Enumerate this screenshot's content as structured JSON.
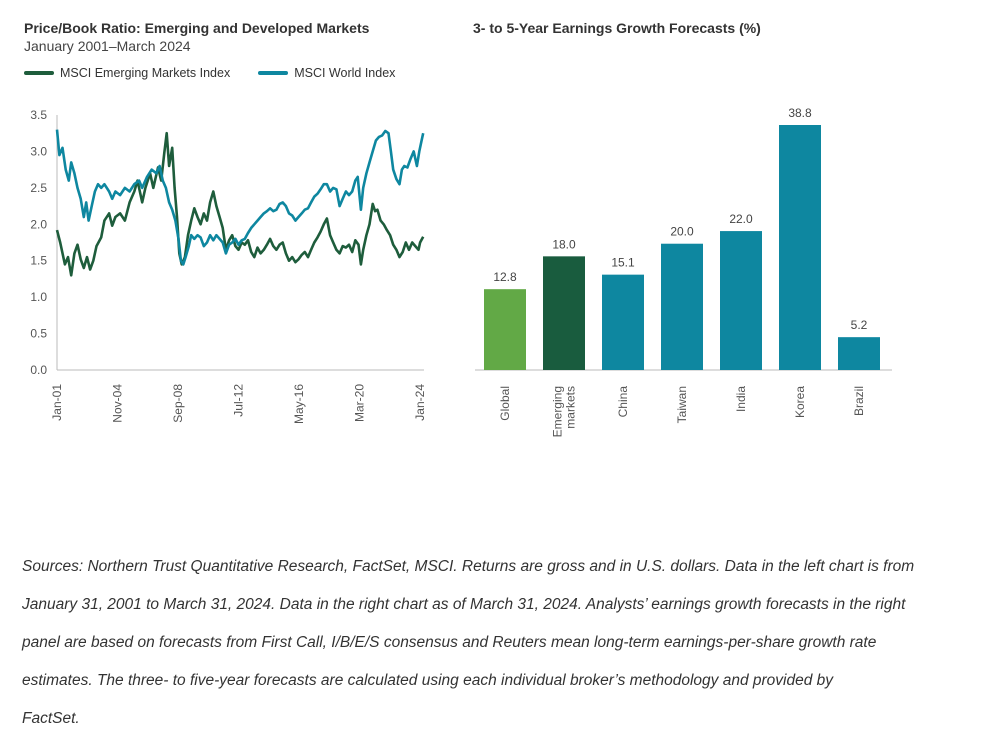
{
  "chart_data": [
    {
      "type": "line",
      "title": "Price/Book Ratio: Emerging and Developed Markets",
      "subtitle": "January 2001–March 2024",
      "ylim": [
        0,
        3.5
      ],
      "yticks": [
        "0.0",
        "0.5",
        "1.0",
        "1.5",
        "2.0",
        "2.5",
        "3.0",
        "3.5"
      ],
      "xlim": [
        2001.0,
        2024.25
      ],
      "xticks": [
        {
          "label": "Jan-01",
          "x": 2001.0
        },
        {
          "label": "Nov-04",
          "x": 2004.83
        },
        {
          "label": "Sep-08",
          "x": 2008.67
        },
        {
          "label": "Jul-12",
          "x": 2012.5
        },
        {
          "label": "May-16",
          "x": 2016.33
        },
        {
          "label": "Mar-20",
          "x": 2020.17
        },
        {
          "label": "Jan-24",
          "x": 2024.0
        }
      ],
      "series": [
        {
          "name": "MSCI Emerging Markets Index",
          "color": "#1e5d3c",
          "points": [
            [
              2001.0,
              1.92
            ],
            [
              2001.2,
              1.75
            ],
            [
              2001.5,
              1.45
            ],
            [
              2001.7,
              1.55
            ],
            [
              2001.9,
              1.3
            ],
            [
              2002.1,
              1.6
            ],
            [
              2002.3,
              1.72
            ],
            [
              2002.5,
              1.52
            ],
            [
              2002.7,
              1.4
            ],
            [
              2002.9,
              1.55
            ],
            [
              2003.1,
              1.38
            ],
            [
              2003.3,
              1.5
            ],
            [
              2003.5,
              1.7
            ],
            [
              2003.8,
              1.82
            ],
            [
              2004.0,
              2.05
            ],
            [
              2004.3,
              2.15
            ],
            [
              2004.5,
              1.98
            ],
            [
              2004.7,
              2.1
            ],
            [
              2005.0,
              2.15
            ],
            [
              2005.3,
              2.05
            ],
            [
              2005.6,
              2.3
            ],
            [
              2005.9,
              2.45
            ],
            [
              2006.1,
              2.6
            ],
            [
              2006.4,
              2.3
            ],
            [
              2006.6,
              2.5
            ],
            [
              2006.9,
              2.7
            ],
            [
              2007.1,
              2.5
            ],
            [
              2007.4,
              2.78
            ],
            [
              2007.6,
              2.6
            ],
            [
              2007.8,
              2.98
            ],
            [
              2007.95,
              3.25
            ],
            [
              2008.1,
              2.8
            ],
            [
              2008.3,
              3.05
            ],
            [
              2008.45,
              2.5
            ],
            [
              2008.6,
              2.1
            ],
            [
              2008.75,
              1.6
            ],
            [
              2008.9,
              1.45
            ],
            [
              2009.1,
              1.55
            ],
            [
              2009.3,
              1.85
            ],
            [
              2009.5,
              2.05
            ],
            [
              2009.7,
              2.22
            ],
            [
              2009.9,
              2.1
            ],
            [
              2010.1,
              2.0
            ],
            [
              2010.3,
              2.15
            ],
            [
              2010.5,
              2.05
            ],
            [
              2010.7,
              2.3
            ],
            [
              2010.9,
              2.45
            ],
            [
              2011.1,
              2.25
            ],
            [
              2011.3,
              2.1
            ],
            [
              2011.5,
              1.95
            ],
            [
              2011.7,
              1.65
            ],
            [
              2011.9,
              1.78
            ],
            [
              2012.1,
              1.85
            ],
            [
              2012.3,
              1.7
            ],
            [
              2012.5,
              1.65
            ],
            [
              2012.7,
              1.75
            ],
            [
              2012.9,
              1.72
            ],
            [
              2013.1,
              1.78
            ],
            [
              2013.3,
              1.62
            ],
            [
              2013.5,
              1.55
            ],
            [
              2013.7,
              1.68
            ],
            [
              2013.9,
              1.6
            ],
            [
              2014.1,
              1.65
            ],
            [
              2014.3,
              1.72
            ],
            [
              2014.5,
              1.8
            ],
            [
              2014.7,
              1.7
            ],
            [
              2014.9,
              1.65
            ],
            [
              2015.1,
              1.72
            ],
            [
              2015.3,
              1.75
            ],
            [
              2015.5,
              1.6
            ],
            [
              2015.7,
              1.5
            ],
            [
              2015.9,
              1.55
            ],
            [
              2016.1,
              1.48
            ],
            [
              2016.3,
              1.52
            ],
            [
              2016.5,
              1.58
            ],
            [
              2016.7,
              1.62
            ],
            [
              2016.9,
              1.55
            ],
            [
              2017.1,
              1.65
            ],
            [
              2017.3,
              1.75
            ],
            [
              2017.5,
              1.82
            ],
            [
              2017.7,
              1.9
            ],
            [
              2017.9,
              2.0
            ],
            [
              2018.1,
              2.08
            ],
            [
              2018.3,
              1.85
            ],
            [
              2018.5,
              1.75
            ],
            [
              2018.7,
              1.65
            ],
            [
              2018.9,
              1.6
            ],
            [
              2019.1,
              1.7
            ],
            [
              2019.3,
              1.68
            ],
            [
              2019.5,
              1.72
            ],
            [
              2019.7,
              1.62
            ],
            [
              2019.9,
              1.78
            ],
            [
              2020.1,
              1.72
            ],
            [
              2020.25,
              1.45
            ],
            [
              2020.4,
              1.65
            ],
            [
              2020.6,
              1.85
            ],
            [
              2020.8,
              2.0
            ],
            [
              2021.0,
              2.28
            ],
            [
              2021.15,
              2.18
            ],
            [
              2021.3,
              2.2
            ],
            [
              2021.5,
              2.05
            ],
            [
              2021.7,
              2.0
            ],
            [
              2021.9,
              1.92
            ],
            [
              2022.1,
              1.85
            ],
            [
              2022.3,
              1.72
            ],
            [
              2022.5,
              1.65
            ],
            [
              2022.7,
              1.55
            ],
            [
              2022.9,
              1.62
            ],
            [
              2023.1,
              1.75
            ],
            [
              2023.3,
              1.65
            ],
            [
              2023.5,
              1.75
            ],
            [
              2023.7,
              1.7
            ],
            [
              2023.9,
              1.65
            ],
            [
              2024.0,
              1.75
            ],
            [
              2024.2,
              1.83
            ]
          ]
        },
        {
          "name": "MSCI World Index",
          "color": "#0e87a0",
          "points": [
            [
              2001.0,
              3.3
            ],
            [
              2001.15,
              2.95
            ],
            [
              2001.35,
              3.05
            ],
            [
              2001.55,
              2.75
            ],
            [
              2001.75,
              2.6
            ],
            [
              2001.9,
              2.85
            ],
            [
              2002.1,
              2.7
            ],
            [
              2002.3,
              2.5
            ],
            [
              2002.5,
              2.35
            ],
            [
              2002.7,
              2.1
            ],
            [
              2002.85,
              2.3
            ],
            [
              2003.0,
              2.05
            ],
            [
              2003.2,
              2.25
            ],
            [
              2003.4,
              2.45
            ],
            [
              2003.6,
              2.55
            ],
            [
              2003.8,
              2.5
            ],
            [
              2004.0,
              2.55
            ],
            [
              2004.3,
              2.45
            ],
            [
              2004.5,
              2.35
            ],
            [
              2004.7,
              2.45
            ],
            [
              2005.0,
              2.4
            ],
            [
              2005.3,
              2.5
            ],
            [
              2005.6,
              2.45
            ],
            [
              2005.9,
              2.55
            ],
            [
              2006.2,
              2.6
            ],
            [
              2006.4,
              2.5
            ],
            [
              2006.7,
              2.65
            ],
            [
              2007.0,
              2.75
            ],
            [
              2007.3,
              2.7
            ],
            [
              2007.5,
              2.8
            ],
            [
              2007.7,
              2.6
            ],
            [
              2007.9,
              2.5
            ],
            [
              2008.1,
              2.3
            ],
            [
              2008.3,
              2.2
            ],
            [
              2008.5,
              2.05
            ],
            [
              2008.7,
              1.8
            ],
            [
              2008.85,
              1.5
            ],
            [
              2009.0,
              1.45
            ],
            [
              2009.15,
              1.55
            ],
            [
              2009.35,
              1.7
            ],
            [
              2009.5,
              1.85
            ],
            [
              2009.7,
              1.8
            ],
            [
              2009.9,
              1.85
            ],
            [
              2010.1,
              1.82
            ],
            [
              2010.3,
              1.7
            ],
            [
              2010.5,
              1.75
            ],
            [
              2010.7,
              1.85
            ],
            [
              2010.9,
              1.78
            ],
            [
              2011.1,
              1.85
            ],
            [
              2011.3,
              1.8
            ],
            [
              2011.5,
              1.75
            ],
            [
              2011.7,
              1.6
            ],
            [
              2011.9,
              1.72
            ],
            [
              2012.1,
              1.75
            ],
            [
              2012.3,
              1.8
            ],
            [
              2012.5,
              1.72
            ],
            [
              2012.7,
              1.78
            ],
            [
              2012.9,
              1.8
            ],
            [
              2013.1,
              1.88
            ],
            [
              2013.3,
              1.95
            ],
            [
              2013.5,
              2.0
            ],
            [
              2013.7,
              2.05
            ],
            [
              2013.9,
              2.1
            ],
            [
              2014.1,
              2.15
            ],
            [
              2014.3,
              2.18
            ],
            [
              2014.5,
              2.22
            ],
            [
              2014.7,
              2.18
            ],
            [
              2014.9,
              2.2
            ],
            [
              2015.1,
              2.28
            ],
            [
              2015.3,
              2.3
            ],
            [
              2015.5,
              2.25
            ],
            [
              2015.7,
              2.15
            ],
            [
              2015.9,
              2.12
            ],
            [
              2016.1,
              2.05
            ],
            [
              2016.3,
              2.1
            ],
            [
              2016.5,
              2.15
            ],
            [
              2016.7,
              2.2
            ],
            [
              2016.9,
              2.22
            ],
            [
              2017.1,
              2.3
            ],
            [
              2017.3,
              2.38
            ],
            [
              2017.5,
              2.42
            ],
            [
              2017.7,
              2.48
            ],
            [
              2017.9,
              2.55
            ],
            [
              2018.1,
              2.55
            ],
            [
              2018.3,
              2.45
            ],
            [
              2018.5,
              2.5
            ],
            [
              2018.7,
              2.48
            ],
            [
              2018.9,
              2.25
            ],
            [
              2019.1,
              2.35
            ],
            [
              2019.3,
              2.45
            ],
            [
              2019.5,
              2.4
            ],
            [
              2019.7,
              2.45
            ],
            [
              2019.9,
              2.6
            ],
            [
              2020.05,
              2.65
            ],
            [
              2020.25,
              2.2
            ],
            [
              2020.4,
              2.5
            ],
            [
              2020.6,
              2.7
            ],
            [
              2020.8,
              2.85
            ],
            [
              2021.0,
              3.0
            ],
            [
              2021.2,
              3.15
            ],
            [
              2021.4,
              3.2
            ],
            [
              2021.6,
              3.22
            ],
            [
              2021.8,
              3.28
            ],
            [
              2022.0,
              3.25
            ],
            [
              2022.15,
              3.0
            ],
            [
              2022.3,
              2.75
            ],
            [
              2022.5,
              2.62
            ],
            [
              2022.7,
              2.55
            ],
            [
              2022.85,
              2.75
            ],
            [
              2023.0,
              2.8
            ],
            [
              2023.2,
              2.78
            ],
            [
              2023.4,
              2.9
            ],
            [
              2023.6,
              3.0
            ],
            [
              2023.8,
              2.8
            ],
            [
              2023.95,
              3.0
            ],
            [
              2024.1,
              3.15
            ],
            [
              2024.2,
              3.25
            ]
          ]
        }
      ]
    },
    {
      "type": "bar",
      "title": "3- to 5-Year Earnings Growth Forecasts (%)",
      "categories": [
        [
          "Global"
        ],
        [
          "Emerging",
          "markets"
        ],
        [
          "China"
        ],
        [
          "Taiwan"
        ],
        [
          "India"
        ],
        [
          "Korea"
        ],
        [
          "Brazil"
        ]
      ],
      "values": [
        12.8,
        18.0,
        15.1,
        20.0,
        22.0,
        38.8,
        5.2
      ],
      "value_labels": [
        "12.8",
        "18.0",
        "15.1",
        "20.0",
        "22.0",
        "38.8",
        "5.2"
      ],
      "colors": [
        "#62a946",
        "#195c3e",
        "#0e87a0",
        "#0e87a0",
        "#0e87a0",
        "#0e87a0",
        "#0e87a0"
      ],
      "ylim": [
        0,
        40
      ]
    }
  ],
  "footnote": [
    "Sources: Northern Trust Quantitative Research, FactSet, MSCI. Returns are gross and in U.S. dollars. Data in the left chart is from",
    "January 31, 2001 to March 31, 2024. Data in the right chart as of March 31, 2024. Analysts’ earnings growth forecasts in the right",
    "panel are based on forecasts from First Call, I/B/E/S consensus and Reuters mean long-term earnings-per-share growth rate",
    "estimates. The three- to five-year forecasts are calculated using each individual broker’s methodology and provided by",
    "FactSet."
  ]
}
